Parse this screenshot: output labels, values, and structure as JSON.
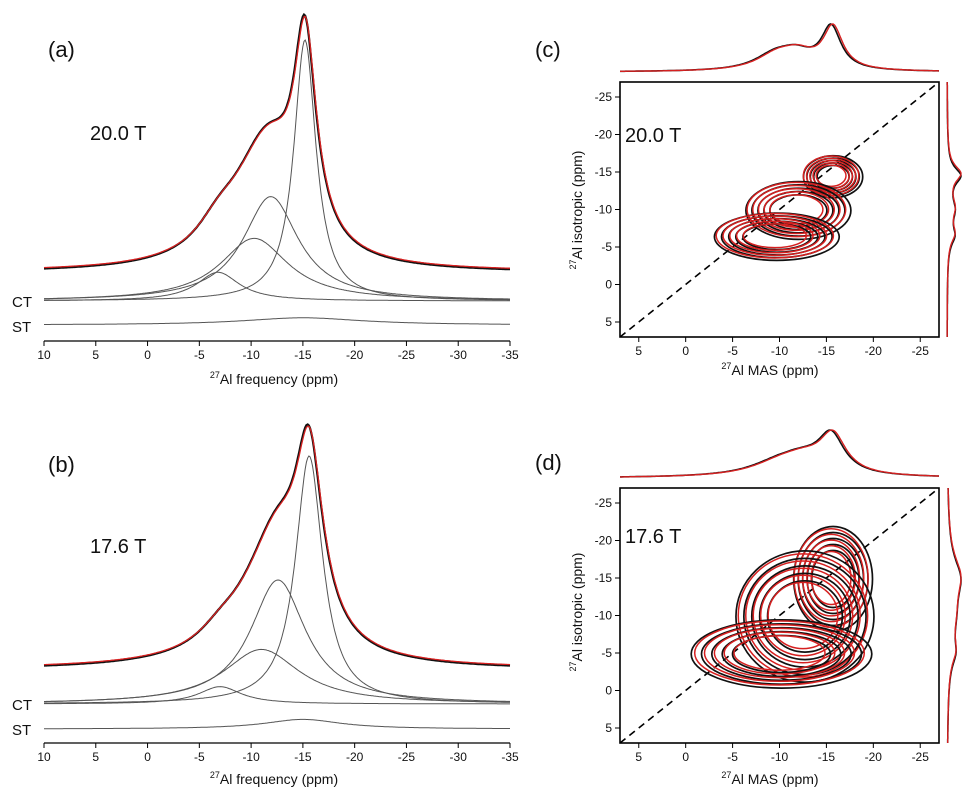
{
  "figure": {
    "panels": [
      {
        "id": "a",
        "letter": "(a)",
        "field": "20.0 T",
        "type": "1d",
        "xlabel_sup": "27",
        "xlabel": "Al frequency (ppm)",
        "tag_ct": "CT",
        "tag_st": "ST",
        "xticks": [
          "10",
          "5",
          "0",
          "-5",
          "-10",
          "-15",
          "-20",
          "-25",
          "-30",
          "-35"
        ]
      },
      {
        "id": "b",
        "letter": "(b)",
        "field": "17.6 T",
        "type": "1d",
        "xlabel_sup": "27",
        "xlabel": "Al frequency (ppm)",
        "tag_ct": "CT",
        "tag_st": "ST",
        "xticks": [
          "10",
          "5",
          "0",
          "-5",
          "-10",
          "-15",
          "-20",
          "-25",
          "-30",
          "-35"
        ]
      },
      {
        "id": "c",
        "letter": "(c)",
        "field": "20.0 T",
        "type": "2d",
        "xlabel_sup": "27",
        "xlabel": "Al MAS (ppm)",
        "ylabel_sup": "27",
        "ylabel": "Al isotropic (ppm)",
        "xticks": [
          "5",
          "0",
          "-5",
          "-10",
          "-15",
          "-20",
          "-25"
        ],
        "yticks": [
          "-25",
          "-20",
          "-15",
          "-10",
          "-5",
          "0",
          "5"
        ]
      },
      {
        "id": "d",
        "letter": "(d)",
        "field": "17.6 T",
        "type": "2d",
        "xlabel_sup": "27",
        "xlabel": "Al MAS (ppm)",
        "ylabel_sup": "27",
        "ylabel": "Al isotropic (ppm)",
        "xticks": [
          "5",
          "0",
          "-5",
          "-10",
          "-15",
          "-20",
          "-25"
        ],
        "yticks": [
          "-25",
          "-20",
          "-15",
          "-10",
          "-5",
          "0",
          "5"
        ]
      }
    ],
    "colors": {
      "experiment": "#111111",
      "simulation": "#d62020",
      "components": "#555555",
      "frame": "#000000"
    }
  },
  "chart_data": [
    {
      "type": "line",
      "panel": "a",
      "title": "20.0 T",
      "xlabel": "27Al frequency (ppm)",
      "ylabel": "",
      "xlim": [
        10,
        -35
      ],
      "grid": false,
      "peaks": [
        {
          "pos": -15.2,
          "height": 1.0,
          "fwhm": 2.6,
          "label": "CT"
        },
        {
          "pos": -11.9,
          "height": 0.4,
          "fwhm": 6.5,
          "label": "CT"
        },
        {
          "pos": -10.3,
          "height": 0.24,
          "fwhm": 8.0,
          "label": "CT"
        },
        {
          "pos": -6.8,
          "height": 0.11,
          "fwhm": 5.0,
          "label": "CT"
        }
      ],
      "st": {
        "pos": -15,
        "height": 0.04,
        "fwhm": 14
      },
      "series": []
    },
    {
      "type": "line",
      "panel": "b",
      "title": "17.6 T",
      "xlabel": "27Al frequency (ppm)",
      "ylabel": "",
      "xlim": [
        10,
        -35
      ],
      "grid": false,
      "peaks": [
        {
          "pos": -15.6,
          "height": 1.0,
          "fwhm": 3.2,
          "label": "CT"
        },
        {
          "pos": -12.6,
          "height": 0.5,
          "fwhm": 6.5,
          "label": "CT"
        },
        {
          "pos": -11.0,
          "height": 0.22,
          "fwhm": 9.0,
          "label": "CT"
        },
        {
          "pos": -7.0,
          "height": 0.07,
          "fwhm": 5.0,
          "label": "CT"
        }
      ],
      "st": {
        "pos": -15,
        "height": 0.06,
        "fwhm": 9
      },
      "series": []
    },
    {
      "type": "contour",
      "panel": "c",
      "title": "20.0 T",
      "xlabel": "27Al MAS (ppm)",
      "ylabel": "27Al isotropic (ppm)",
      "xlim": [
        7,
        -27
      ],
      "ylim": [
        7,
        -27
      ],
      "sites": [
        {
          "x": -15.5,
          "y": -14.5,
          "sx": 1.8,
          "sy": 1.6
        },
        {
          "x": -11.8,
          "y": -10.0,
          "sx": 3.2,
          "sy": 2.2
        },
        {
          "x": -9.5,
          "y": -6.5,
          "sx": 3.8,
          "sy": 1.8
        }
      ],
      "series": [
        {
          "color": "experiment"
        },
        {
          "color": "simulation"
        }
      ]
    },
    {
      "type": "contour",
      "panel": "d",
      "title": "17.6 T",
      "xlabel": "27Al MAS (ppm)",
      "ylabel": "27Al isotropic (ppm)",
      "xlim": [
        7,
        -27
      ],
      "ylim": [
        7,
        -27
      ],
      "sites": [
        {
          "x": -15.5,
          "y": -15.0,
          "sx": 2.4,
          "sy": 4.0
        },
        {
          "x": -12.5,
          "y": -10.0,
          "sx": 4.2,
          "sy": 5.0
        },
        {
          "x": -10.0,
          "y": -5.0,
          "sx": 5.5,
          "sy": 2.6
        }
      ],
      "series": [
        {
          "color": "experiment"
        },
        {
          "color": "simulation"
        }
      ]
    }
  ]
}
